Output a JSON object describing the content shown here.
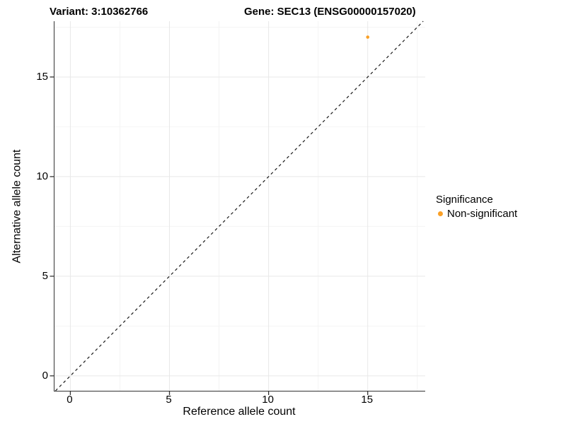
{
  "titles": {
    "variant": "Variant: 3:10362766",
    "gene": "Gene: SEC13 (ENSG00000157020)"
  },
  "legend": {
    "title": "Significance",
    "items": [
      {
        "label": "Non-significant",
        "color": "#FAA026"
      }
    ]
  },
  "chart_data": {
    "type": "scatter",
    "title": "Variant: 3:10362766 | Gene: SEC13 (ENSG00000157020)",
    "xlabel": "Reference allele count",
    "ylabel": "Alternative allele count",
    "x_ticks": [
      0,
      5,
      10,
      15
    ],
    "y_ticks": [
      0,
      5,
      10,
      15
    ],
    "minor_ticks": [
      2.5,
      7.5,
      12.5,
      17.5
    ],
    "xlim": [
      -0.8,
      17.9
    ],
    "ylim": [
      -0.75,
      17.8
    ],
    "grid": true,
    "legend_position": "right",
    "series": [
      {
        "name": "Non-significant",
        "color": "#FAA026",
        "points": [
          {
            "x": 15,
            "y": 17
          }
        ]
      }
    ],
    "reference_line": {
      "type": "identity",
      "slope": 1,
      "intercept": 0,
      "style": "dashed",
      "color": "#1a1a1a"
    }
  },
  "style": {
    "axis_color": "#333333",
    "grid_major": "#e8e8e8",
    "grid_minor": "#f4f4f4"
  }
}
